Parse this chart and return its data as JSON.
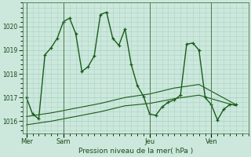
{
  "xlabel": "Pression niveau de la mer( hPa )",
  "bg_color": "#cce8dc",
  "plot_bg_color": "#cce8dc",
  "grid_color": "#aad4c4",
  "line_color": "#1a5c1a",
  "vline_color": "#4a7a4a",
  "ylim": [
    1015.5,
    1021.0
  ],
  "yticks": [
    1016,
    1017,
    1018,
    1019,
    1020
  ],
  "day_labels": [
    "Mer",
    "Sam",
    "Jeu",
    "Ven"
  ],
  "day_positions": [
    0,
    3,
    10,
    15
  ],
  "xlim": [
    -0.3,
    18.0
  ],
  "series1_x": [
    0,
    0.5,
    1.0,
    1.5,
    2.0,
    2.5,
    3.0,
    3.5,
    4.0,
    4.5,
    5.0,
    5.5,
    6.0,
    6.5,
    7.0,
    7.5,
    8.0,
    8.5,
    9.0,
    9.5,
    10.0,
    10.5,
    11.0,
    11.5,
    12.0,
    12.5,
    13.0,
    13.5,
    14.0,
    14.5,
    15.0,
    15.5,
    16.0,
    16.5,
    17.0
  ],
  "series1_y": [
    1017.0,
    1016.3,
    1016.1,
    1018.8,
    1019.1,
    1019.5,
    1020.2,
    1020.35,
    1019.7,
    1018.1,
    1018.3,
    1018.75,
    1020.5,
    1020.6,
    1019.5,
    1019.2,
    1019.9,
    1018.4,
    1017.5,
    1017.05,
    1016.3,
    1016.25,
    1016.6,
    1016.8,
    1016.9,
    1017.1,
    1019.25,
    1019.3,
    1019.0,
    1017.0,
    1016.7,
    1016.05,
    1016.5,
    1016.7,
    1016.7
  ],
  "series2_x": [
    0,
    2,
    4,
    6,
    8,
    10,
    12,
    14,
    17
  ],
  "series2_y": [
    1016.2,
    1016.35,
    1016.55,
    1016.75,
    1017.0,
    1017.15,
    1017.4,
    1017.55,
    1016.7
  ],
  "series3_x": [
    0,
    2,
    4,
    6,
    8,
    10,
    12,
    14,
    17
  ],
  "series3_y": [
    1015.85,
    1016.0,
    1016.2,
    1016.4,
    1016.65,
    1016.75,
    1016.95,
    1017.1,
    1016.65
  ]
}
